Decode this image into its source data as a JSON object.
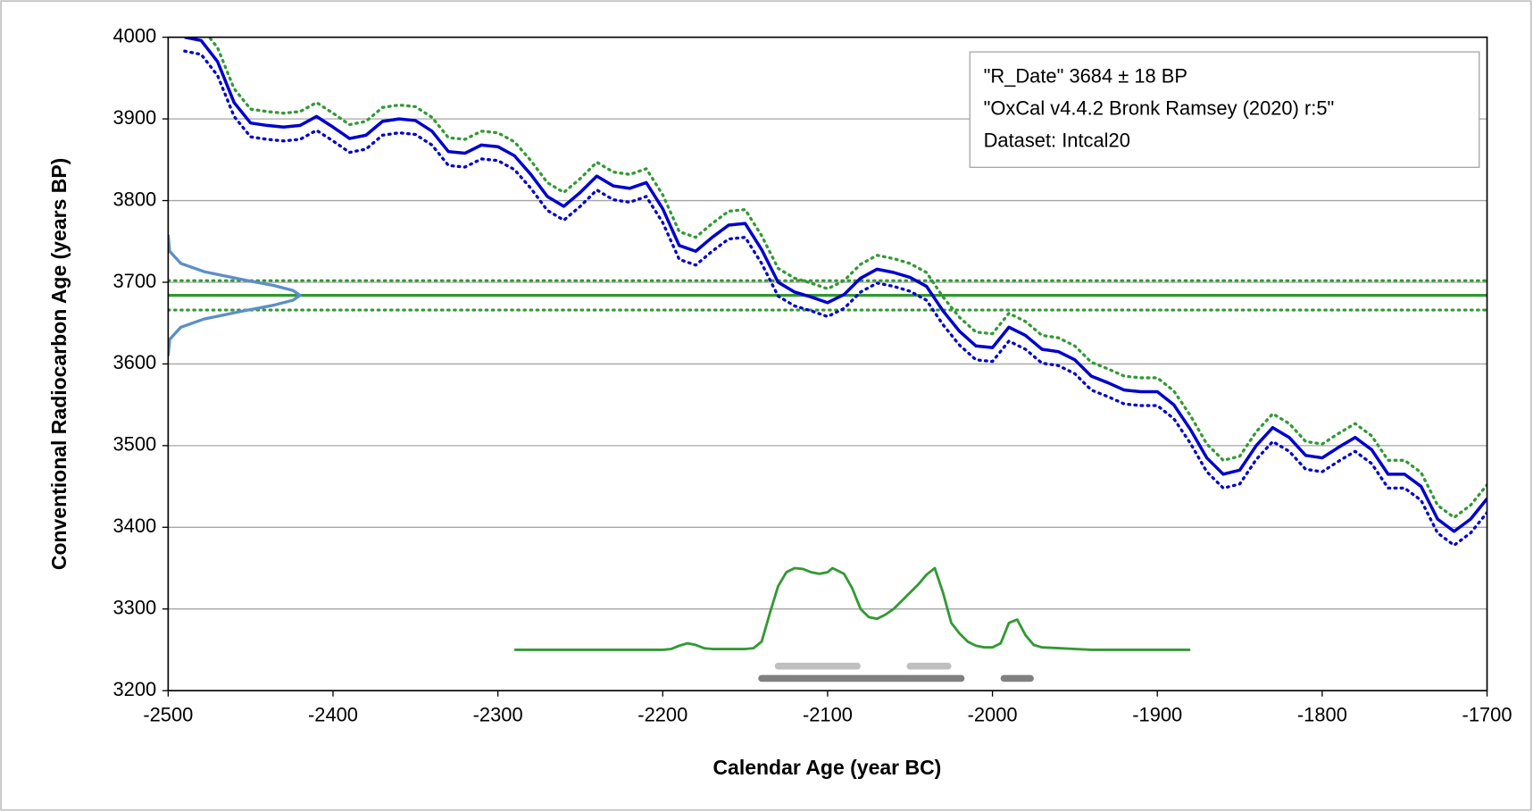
{
  "chart_data": {
    "type": "line",
    "x_label": "Calendar Age (year BC)",
    "y_label": "Conventional Radiocarbon Age (years BP)",
    "legend_text": [
      "\"R_Date\" 3684 ± 18 BP",
      "\"OxCal v4.4.2 Bronk Ramsey (2020) r:5\"",
      "Dataset: Intcal20"
    ],
    "xlim": [
      -2500,
      -1700
    ],
    "ylim": [
      3200,
      4000
    ],
    "xticks": [
      -2500,
      -2400,
      -2300,
      -2200,
      -2100,
      -2000,
      -1900,
      -1800,
      -1700
    ],
    "yticks": [
      3200,
      3300,
      3400,
      3500,
      3600,
      3700,
      3800,
      3900,
      4000
    ],
    "grid": true,
    "x": [
      -2490,
      -2480,
      -2470,
      -2460,
      -2450,
      -2440,
      -2430,
      -2420,
      -2410,
      -2400,
      -2390,
      -2380,
      -2370,
      -2360,
      -2350,
      -2340,
      -2330,
      -2320,
      -2310,
      -2300,
      -2290,
      -2280,
      -2270,
      -2260,
      -2250,
      -2240,
      -2230,
      -2220,
      -2210,
      -2200,
      -2190,
      -2180,
      -2170,
      -2160,
      -2150,
      -2140,
      -2130,
      -2120,
      -2110,
      -2100,
      -2090,
      -2080,
      -2070,
      -2060,
      -2050,
      -2040,
      -2030,
      -2020,
      -2010,
      -2000,
      -1990,
      -1980,
      -1970,
      -1960,
      -1950,
      -1940,
      -1930,
      -1920,
      -1910,
      -1900,
      -1890,
      -1880,
      -1870,
      -1860,
      -1850,
      -1840,
      -1830,
      -1820,
      -1810,
      -1800,
      -1790,
      -1780,
      -1770,
      -1760,
      -1750,
      -1740,
      -1730,
      -1720,
      -1710,
      -1700
    ],
    "series": [
      {
        "color": "#339933",
        "dash": true,
        "values": [
          4017,
          4013,
          3987,
          3937,
          3912,
          3909,
          3907,
          3909,
          3920,
          3907,
          3893,
          3897,
          3914,
          3917,
          3915,
          3902,
          3877,
          3875,
          3885,
          3883,
          3872,
          3849,
          3822,
          3810,
          3827,
          3847,
          3835,
          3832,
          3839,
          3807,
          3762,
          3755,
          3772,
          3787,
          3789,
          3757,
          3717,
          3705,
          3699,
          3692,
          3702,
          3722,
          3733,
          3729,
          3723,
          3712,
          3682,
          3657,
          3639,
          3637,
          3662,
          3652,
          3635,
          3632,
          3622,
          3602,
          3594,
          3585,
          3583,
          3583,
          3567,
          3537,
          3502,
          3482,
          3487,
          3517,
          3539,
          3527,
          3505,
          3502,
          3515,
          3527,
          3512,
          3482,
          3482,
          3467,
          3427,
          3412,
          3427,
          3452
        ]
      },
      {
        "color": "#0000cc",
        "dash": true,
        "values": [
          3983,
          3979,
          3953,
          3903,
          3878,
          3875,
          3873,
          3875,
          3886,
          3873,
          3859,
          3863,
          3880,
          3883,
          3881,
          3868,
          3843,
          3841,
          3851,
          3849,
          3838,
          3815,
          3788,
          3776,
          3793,
          3813,
          3801,
          3798,
          3805,
          3773,
          3728,
          3721,
          3738,
          3753,
          3755,
          3723,
          3683,
          3671,
          3665,
          3658,
          3668,
          3688,
          3699,
          3695,
          3689,
          3678,
          3648,
          3623,
          3605,
          3603,
          3628,
          3618,
          3601,
          3598,
          3588,
          3568,
          3560,
          3551,
          3549,
          3549,
          3533,
          3503,
          3468,
          3448,
          3453,
          3483,
          3505,
          3493,
          3471,
          3468,
          3481,
          3493,
          3478,
          3448,
          3448,
          3433,
          3393,
          3378,
          3393,
          3418
        ]
      },
      {
        "color": "#0000cc",
        "dash": false,
        "values": [
          4000,
          3996,
          3970,
          3920,
          3895,
          3892,
          3890,
          3892,
          3903,
          3890,
          3876,
          3880,
          3897,
          3900,
          3898,
          3885,
          3860,
          3858,
          3868,
          3866,
          3855,
          3832,
          3805,
          3793,
          3810,
          3830,
          3818,
          3815,
          3822,
          3790,
          3745,
          3738,
          3755,
          3770,
          3772,
          3740,
          3700,
          3688,
          3682,
          3675,
          3685,
          3705,
          3716,
          3712,
          3706,
          3695,
          3665,
          3640,
          3622,
          3620,
          3645,
          3635,
          3618,
          3615,
          3605,
          3585,
          3577,
          3568,
          3566,
          3566,
          3550,
          3520,
          3485,
          3465,
          3470,
          3500,
          3522,
          3510,
          3488,
          3485,
          3498,
          3510,
          3495,
          3465,
          3465,
          3450,
          3410,
          3395,
          3410,
          3435
        ]
      }
    ],
    "measurement": {
      "color": "#339933",
      "mean": 3684,
      "lower": 3666,
      "upper": 3702
    },
    "measurement_curve": {
      "color": "#5b8fc7",
      "x": [
        -2500,
        -2499.1,
        -2492.3,
        -2478.2,
        -2454.2,
        -2435.9,
        -2424.3,
        -2420,
        -2424.3,
        -2435.9,
        -2454.2,
        -2478.2,
        -2492.3,
        -2499.1,
        -2500
      ],
      "y": [
        3610,
        3630,
        3645,
        3655,
        3665,
        3672,
        3678,
        3684,
        3690,
        3696,
        3703,
        3713,
        3723,
        3738,
        3758
      ]
    },
    "calibrated_curve": {
      "color": "#339933",
      "x": [
        -2290,
        -2280,
        -2200,
        -2195,
        -2190,
        -2185,
        -2180,
        -2175,
        -2170,
        -2150,
        -2145,
        -2140,
        -2135,
        -2130,
        -2125,
        -2120,
        -2115,
        -2110,
        -2105,
        -2100,
        -2097,
        -2090,
        -2085,
        -2080,
        -2075,
        -2070,
        -2065,
        -2060,
        -2055,
        -2050,
        -2045,
        -2040,
        -2035,
        -2030,
        -2025,
        -2020,
        -2015,
        -2010,
        -2005,
        -2000,
        -1995,
        -1990,
        -1985,
        -1980,
        -1975,
        -1970,
        -1960,
        -1950,
        -1940,
        -1880
      ],
      "y": [
        3250,
        3250,
        3250,
        3251,
        3255,
        3258,
        3256,
        3252,
        3251,
        3251,
        3252,
        3260,
        3295,
        3328,
        3345,
        3350,
        3349,
        3345,
        3343,
        3345,
        3350,
        3343,
        3325,
        3300,
        3290,
        3288,
        3293,
        3300,
        3310,
        3320,
        3330,
        3342,
        3350,
        3320,
        3283,
        3270,
        3260,
        3255,
        3253,
        3253,
        3258,
        3283,
        3287,
        3268,
        3256,
        3253,
        3252,
        3251,
        3250,
        3250
      ]
    },
    "ranges": [
      {
        "color": "#bfbfbf",
        "y": 3230,
        "from": [
          -2130,
          -2050
        ],
        "to": [
          -2082,
          -2027
        ]
      },
      {
        "color": "#808080",
        "y": 3215,
        "from": [
          -2140,
          -1993
        ],
        "to": [
          -2019,
          -1977
        ]
      }
    ]
  }
}
